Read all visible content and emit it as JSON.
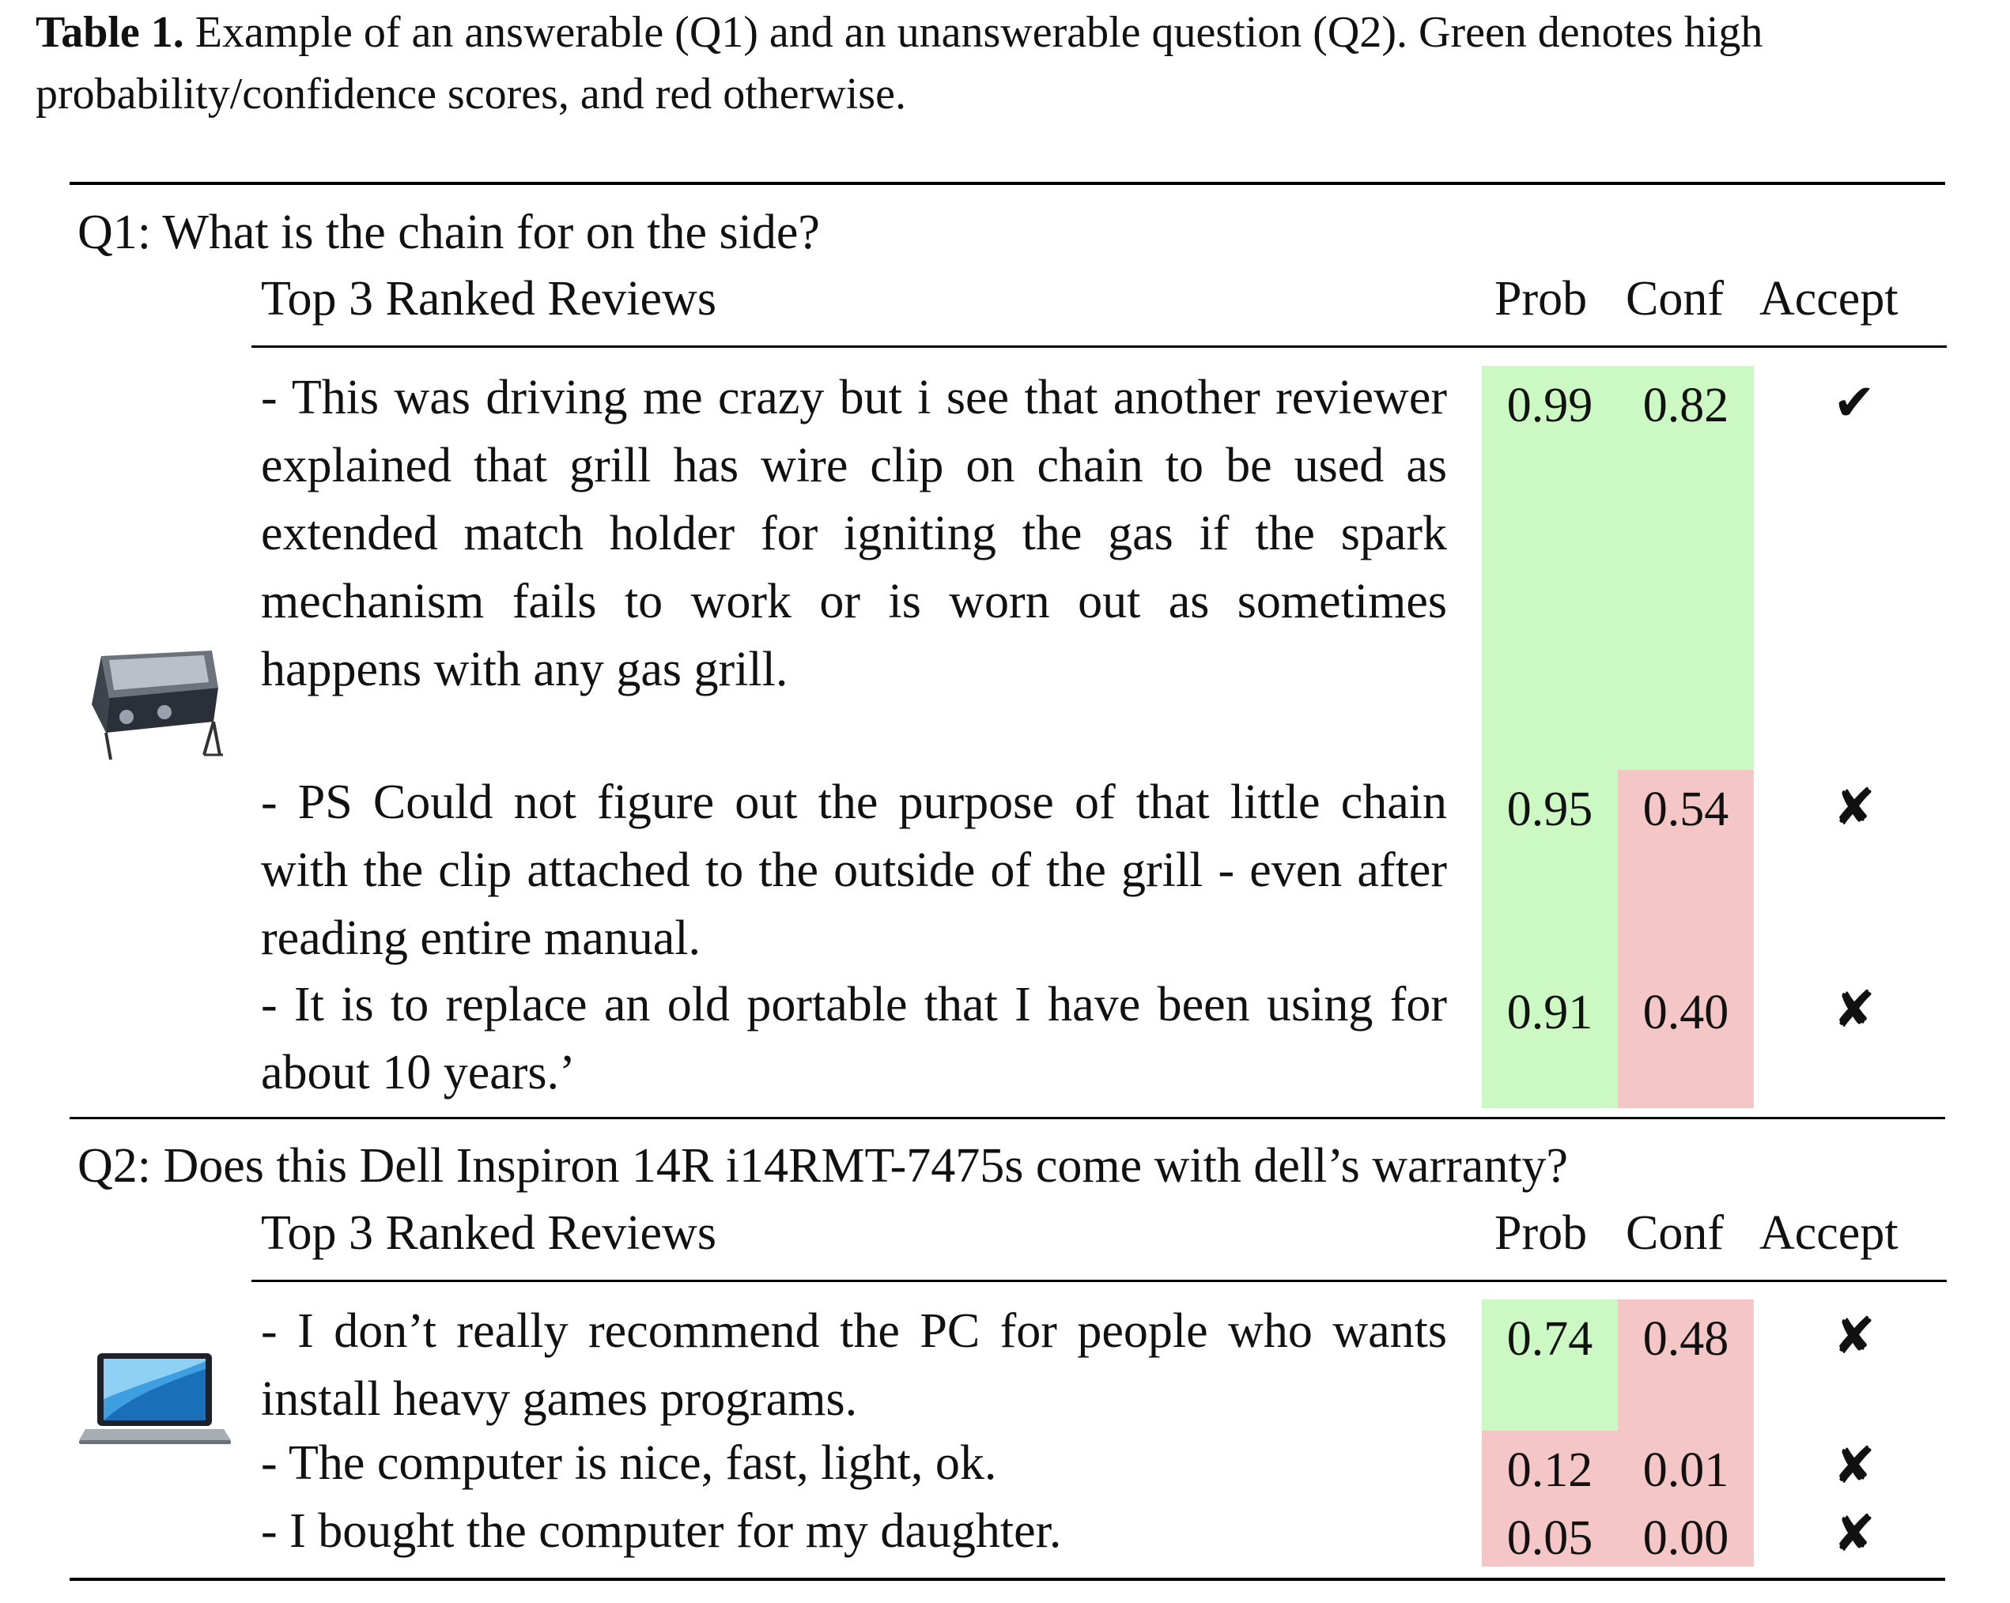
{
  "caption": {
    "label": "Table 1.",
    "text": "Example of an answerable (Q1) and an unanswerable question (Q2). Green denotes high probability/confidence scores, and red otherwise."
  },
  "colors": {
    "high": "#ccf8c4",
    "low": "#f4c6c6"
  },
  "headers": {
    "reviews": "Top 3 Ranked Reviews",
    "prob": "Prob",
    "conf": "Conf",
    "accept": "Accept"
  },
  "q1": {
    "question": "Q1: What is the chain for on the side?",
    "image": "gas-grill",
    "reviews": [
      {
        "text": "- This was driving me crazy but i see that another reviewer explained that grill has wire clip on chain to be used as extended match holder for igniting the gas if the spark mechanism fails to work or is worn out as sometimes happens with any gas grill.",
        "prob": "0.99",
        "conf": "0.82",
        "accept": "✔",
        "prob_level": "high",
        "conf_level": "high"
      },
      {
        "text": "- PS Could not figure out the purpose of that little chain with the clip attached to the outside of the grill - even after reading entire manual.",
        "prob": "0.95",
        "conf": "0.54",
        "accept": "✘",
        "prob_level": "high",
        "conf_level": "low"
      },
      {
        "text": "- It is to replace an old portable that I have been using for about 10 years.’",
        "prob": "0.91",
        "conf": "0.40",
        "accept": "✘",
        "prob_level": "high",
        "conf_level": "low"
      }
    ]
  },
  "q2": {
    "question": "Q2: Does this Dell Inspiron 14R i14RMT-7475s come with dell’s warranty?",
    "image": "laptop",
    "reviews": [
      {
        "text": "- I don’t really recommend the PC for people who wants install heavy games programs.",
        "prob": "0.74",
        "conf": "0.48",
        "accept": "✘",
        "prob_level": "high",
        "conf_level": "low"
      },
      {
        "text": "- The computer is nice, fast, light, ok.",
        "prob": "0.12",
        "conf": "0.01",
        "accept": "✘",
        "prob_level": "low",
        "conf_level": "low"
      },
      {
        "text": "- I bought the computer for my daughter.",
        "prob": "0.05",
        "conf": "0.00",
        "accept": "✘",
        "prob_level": "low",
        "conf_level": "low"
      }
    ]
  }
}
